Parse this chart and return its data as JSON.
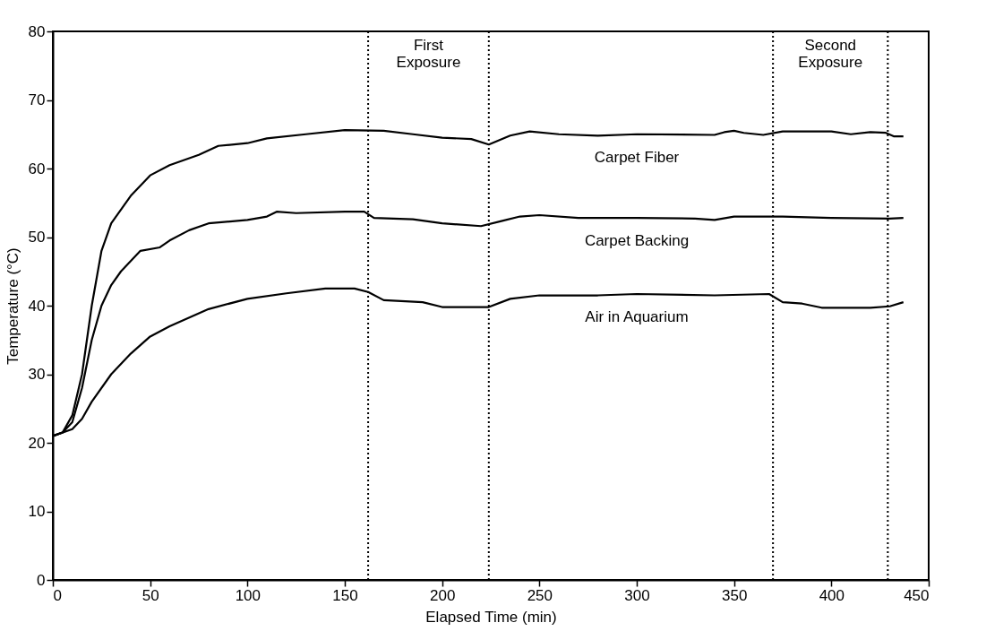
{
  "chart_data": {
    "type": "line",
    "xlabel": "Elapsed Time (min)",
    "ylabel": "Temperature (°C)",
    "xlim": [
      0,
      450
    ],
    "ylim": [
      0,
      80
    ],
    "xticks": [
      0,
      50,
      100,
      150,
      200,
      250,
      300,
      350,
      400,
      450
    ],
    "yticks": [
      0,
      10,
      20,
      30,
      40,
      50,
      60,
      70,
      80
    ],
    "grid": false,
    "marker": "none",
    "line_style": "solid",
    "series": [
      {
        "name": "Carpet Fiber",
        "color": "#000000",
        "x": [
          0,
          5,
          10,
          15,
          20,
          25,
          30,
          40,
          50,
          60,
          75,
          85,
          100,
          110,
          130,
          150,
          170,
          185,
          200,
          215,
          224,
          235,
          245,
          260,
          280,
          300,
          340,
          345,
          350,
          355,
          365,
          375,
          400,
          410,
          420,
          428,
          432,
          437
        ],
        "values": [
          21,
          21.5,
          24,
          30,
          40,
          48,
          52,
          56,
          59,
          60.5,
          62,
          63.3,
          63.7,
          64.4,
          65,
          65.6,
          65.5,
          65,
          64.5,
          64.3,
          63.5,
          64.8,
          65.4,
          65,
          64.8,
          65,
          64.9,
          65.3,
          65.5,
          65.2,
          64.9,
          65.4,
          65.4,
          65,
          65.3,
          65.2,
          64.7,
          64.7
        ]
      },
      {
        "name": "Carpet Backing",
        "color": "#000000",
        "x": [
          0,
          5,
          10,
          15,
          20,
          25,
          30,
          35,
          40,
          45,
          55,
          60,
          70,
          80,
          100,
          110,
          115,
          125,
          150,
          160,
          165,
          185,
          200,
          220,
          230,
          240,
          250,
          270,
          300,
          330,
          340,
          350,
          375,
          400,
          430,
          437
        ],
        "values": [
          21,
          21.5,
          23,
          28,
          35,
          40,
          43,
          45,
          46.5,
          48,
          48.5,
          49.5,
          51,
          52,
          52.5,
          53,
          53.7,
          53.5,
          53.7,
          53.7,
          52.8,
          52.6,
          52,
          51.6,
          52.3,
          53,
          53.2,
          52.8,
          52.8,
          52.7,
          52.5,
          53,
          53,
          52.8,
          52.7,
          52.8
        ]
      },
      {
        "name": "Air in Aquarium",
        "color": "#000000",
        "x": [
          0,
          10,
          15,
          20,
          30,
          40,
          50,
          60,
          80,
          100,
          120,
          140,
          155,
          162,
          170,
          190,
          200,
          224,
          235,
          250,
          280,
          300,
          340,
          368,
          375,
          385,
          395,
          420,
          430,
          437
        ],
        "values": [
          21,
          22,
          23.5,
          26,
          30,
          33,
          35.5,
          37,
          39.5,
          41,
          41.8,
          42.5,
          42.5,
          42,
          40.8,
          40.5,
          39.8,
          39.8,
          41,
          41.5,
          41.5,
          41.7,
          41.5,
          41.7,
          40.5,
          40.3,
          39.7,
          39.7,
          39.9,
          40.5
        ]
      }
    ],
    "ref_lines": [
      {
        "axis": "x",
        "value": 162,
        "color": "#000000",
        "line_style": "dotted"
      },
      {
        "axis": "x",
        "value": 224,
        "color": "#000000",
        "line_style": "dotted"
      },
      {
        "axis": "x",
        "value": 370,
        "color": "#000000",
        "line_style": "dotted"
      },
      {
        "axis": "x",
        "value": 429,
        "color": "#000000",
        "line_style": "dotted"
      }
    ],
    "annotations": [
      "First Exposure",
      "Second Exposure"
    ]
  }
}
